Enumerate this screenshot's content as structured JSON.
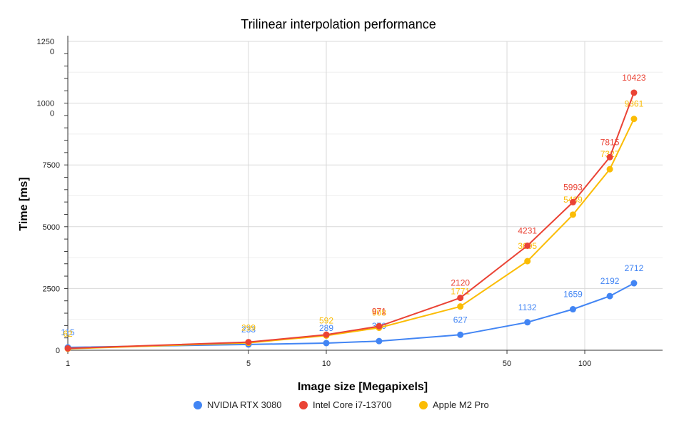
{
  "chart_data": {
    "type": "line",
    "title": "Trilinear interpolation performance",
    "xlabel": "Image size [Megapixels]",
    "ylabel": "Time [ms]",
    "x_scale": "log",
    "xlim": [
      1,
      200
    ],
    "ylim": [
      0,
      12500
    ],
    "x_ticks": [
      {
        "value": 1,
        "label": "1"
      },
      {
        "value": 5,
        "label": "5"
      },
      {
        "value": 10,
        "label": "10"
      },
      {
        "value": 50,
        "label": "50"
      },
      {
        "value": 100,
        "label": "100"
      }
    ],
    "y_ticks": [
      {
        "value": 0,
        "label": "0"
      },
      {
        "value": 2500,
        "label": "2500"
      },
      {
        "value": 5000,
        "label": "5000"
      },
      {
        "value": 7500,
        "label": "7500"
      },
      {
        "value": 10000,
        "label": "10000"
      },
      {
        "value": 12500,
        "label": "12500"
      }
    ],
    "grid": true,
    "legend_position": "bottom",
    "series": [
      {
        "name": "NVIDIA RTX 3080",
        "color": "#4285F4",
        "points": [
          {
            "x": 1,
            "y": 115,
            "label": "115"
          },
          {
            "x": 5,
            "y": 233,
            "label": "233"
          },
          {
            "x": 10,
            "y": 289,
            "label": "289"
          },
          {
            "x": 16,
            "y": 370,
            "label": "370"
          },
          {
            "x": 33,
            "y": 627,
            "label": "627"
          },
          {
            "x": 60,
            "y": 1132,
            "label": "1132"
          },
          {
            "x": 90,
            "y": 1659,
            "label": "1659"
          },
          {
            "x": 125,
            "y": 2192,
            "label": "2192"
          },
          {
            "x": 155,
            "y": 2712,
            "label": "2712"
          }
        ]
      },
      {
        "name": "Intel Core i7-13700",
        "color": "#EA4335",
        "points": [
          {
            "x": 1,
            "y": 75,
            "label": ""
          },
          {
            "x": 5,
            "y": 330,
            "label": ""
          },
          {
            "x": 10,
            "y": 630,
            "label": ""
          },
          {
            "x": 16,
            "y": 971,
            "label": "971"
          },
          {
            "x": 33,
            "y": 2120,
            "label": "2120"
          },
          {
            "x": 60,
            "y": 4231,
            "label": "4231"
          },
          {
            "x": 90,
            "y": 5993,
            "label": "5993"
          },
          {
            "x": 125,
            "y": 7815,
            "label": "7815"
          },
          {
            "x": 155,
            "y": 10423,
            "label": "10423"
          }
        ]
      },
      {
        "name": "Apple M2 Pro",
        "color": "#FBBC04",
        "points": [
          {
            "x": 1,
            "y": 62,
            "label": "62"
          },
          {
            "x": 5,
            "y": 299,
            "label": "299"
          },
          {
            "x": 10,
            "y": 592,
            "label": "592"
          },
          {
            "x": 16,
            "y": 908,
            "label": "908"
          },
          {
            "x": 33,
            "y": 1771,
            "label": "1771"
          },
          {
            "x": 60,
            "y": 3605,
            "label": "3605"
          },
          {
            "x": 90,
            "y": 5489,
            "label": "5489"
          },
          {
            "x": 125,
            "y": 7327,
            "label": "7327"
          },
          {
            "x": 155,
            "y": 9361,
            "label": "9361"
          }
        ]
      }
    ]
  }
}
